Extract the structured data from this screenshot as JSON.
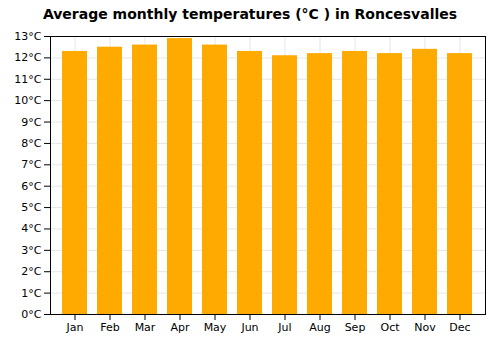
{
  "chart_data": {
    "type": "bar",
    "title": "Average monthly temperatures (°C ) in Roncesvalles",
    "categories": [
      "Jan",
      "Feb",
      "Mar",
      "Apr",
      "May",
      "Jun",
      "Jul",
      "Aug",
      "Sep",
      "Oct",
      "Nov",
      "Dec"
    ],
    "values": [
      12.3,
      12.5,
      12.6,
      12.9,
      12.6,
      12.3,
      12.1,
      12.2,
      12.3,
      12.2,
      12.4,
      12.2
    ],
    "color": "#FFAA00",
    "ylim": [
      0,
      13
    ],
    "yticks": [
      {
        "value": 0,
        "label": "0°C"
      },
      {
        "value": 1,
        "label": "1°C"
      },
      {
        "value": 2,
        "label": "2°C"
      },
      {
        "value": 3,
        "label": "3°C"
      },
      {
        "value": 4,
        "label": "4°C"
      },
      {
        "value": 5,
        "label": "5°C"
      },
      {
        "value": 6,
        "label": "6°C"
      },
      {
        "value": 7,
        "label": "7°C"
      },
      {
        "value": 8,
        "label": "8°C"
      },
      {
        "value": 9,
        "label": "9°C"
      },
      {
        "value": 10,
        "label": "10°C"
      },
      {
        "value": 11,
        "label": "11°C"
      },
      {
        "value": 12,
        "label": "12°C"
      },
      {
        "value": 13,
        "label": "13°C"
      }
    ],
    "grid": true
  }
}
